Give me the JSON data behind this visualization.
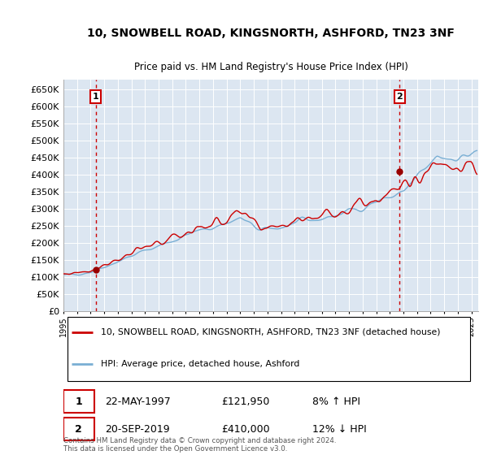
{
  "title": "10, SNOWBELL ROAD, KINGSNORTH, ASHFORD, TN23 3NF",
  "subtitle": "Price paid vs. HM Land Registry's House Price Index (HPI)",
  "ylim": [
    0,
    680000
  ],
  "xlim_start": 1995.0,
  "xlim_end": 2025.5,
  "plot_bg_color": "#dce6f1",
  "legend_line1": "10, SNOWBELL ROAD, KINGSNORTH, ASHFORD, TN23 3NF (detached house)",
  "legend_line2": "HPI: Average price, detached house, Ashford",
  "sale1_date": "22-MAY-1997",
  "sale1_price": "£121,950",
  "sale1_hpi": "8% ↑ HPI",
  "sale1_year": 1997.38,
  "sale1_value": 121950,
  "sale2_date": "20-SEP-2019",
  "sale2_price": "£410,000",
  "sale2_hpi": "12% ↓ HPI",
  "sale2_year": 2019.72,
  "sale2_value": 410000,
  "footnote": "Contains HM Land Registry data © Crown copyright and database right 2024.\nThis data is licensed under the Open Government Licence v3.0.",
  "red_line_color": "#cc0000",
  "blue_line_color": "#7aafd4",
  "dashed_line_color": "#cc0000",
  "marker_color": "#990000",
  "grid_color": "#ffffff",
  "spine_color": "#aaaaaa"
}
